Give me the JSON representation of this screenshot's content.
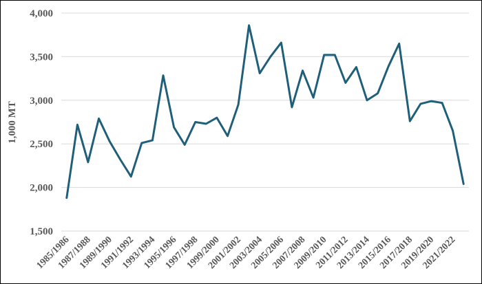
{
  "chart_data": {
    "type": "line",
    "title": "",
    "xlabel": "",
    "ylabel": "1,000 MT",
    "ylim": [
      1500,
      4000
    ],
    "yticks": [
      1500,
      2000,
      2500,
      3000,
      3500,
      4000
    ],
    "ytick_labels": [
      "1,500",
      "2,000",
      "2,500",
      "3,000",
      "3,500",
      "4,000"
    ],
    "grid": true,
    "legend": "none",
    "line_color": "#1f5f7a",
    "x": [
      "1985/1986",
      "1986/1987",
      "1987/1988",
      "1988/1989",
      "1989/1990",
      "1990/1991",
      "1991/1992",
      "1992/1993",
      "1993/1994",
      "1994/1995",
      "1995/1996",
      "1996/1997",
      "1997/1998",
      "1998/1999",
      "1999/2000",
      "2000/2001",
      "2001/2002",
      "2002/2003",
      "2003/2004",
      "2004/2005",
      "2005/2006",
      "2006/2007",
      "2007/2008",
      "2008/2009",
      "2009/2010",
      "2010/2011",
      "2011/2012",
      "2012/2013",
      "2013/2014",
      "2014/2015",
      "2015/2016",
      "2016/2017",
      "2017/2018",
      "2018/2019",
      "2019/2020",
      "2020/2021",
      "2021/2022",
      "2022/2023"
    ],
    "x_tick_labels": [
      "1985/1986",
      "1987/1988",
      "1989/1990",
      "1991/1992",
      "1993/1994",
      "1995/1996",
      "1997/1998",
      "1999/2000",
      "2001/2002",
      "2003/2004",
      "2005/2006",
      "2007/2008",
      "2009/2010",
      "2011/2012",
      "2013/2014",
      "2015/2016",
      "2017/2018",
      "2019/2020",
      "2021/2022"
    ],
    "series": [
      {
        "values": [
          1880,
          2720,
          2290,
          2790,
          2530,
          2320,
          2125,
          2510,
          2540,
          3285,
          2690,
          2490,
          2750,
          2730,
          2800,
          2590,
          2950,
          3860,
          3310,
          3500,
          3660,
          2920,
          3340,
          3030,
          3520,
          3520,
          3200,
          3380,
          3000,
          3080,
          3390,
          3650,
          2760,
          2960,
          2990,
          2970,
          2650,
          2040
        ]
      }
    ]
  }
}
